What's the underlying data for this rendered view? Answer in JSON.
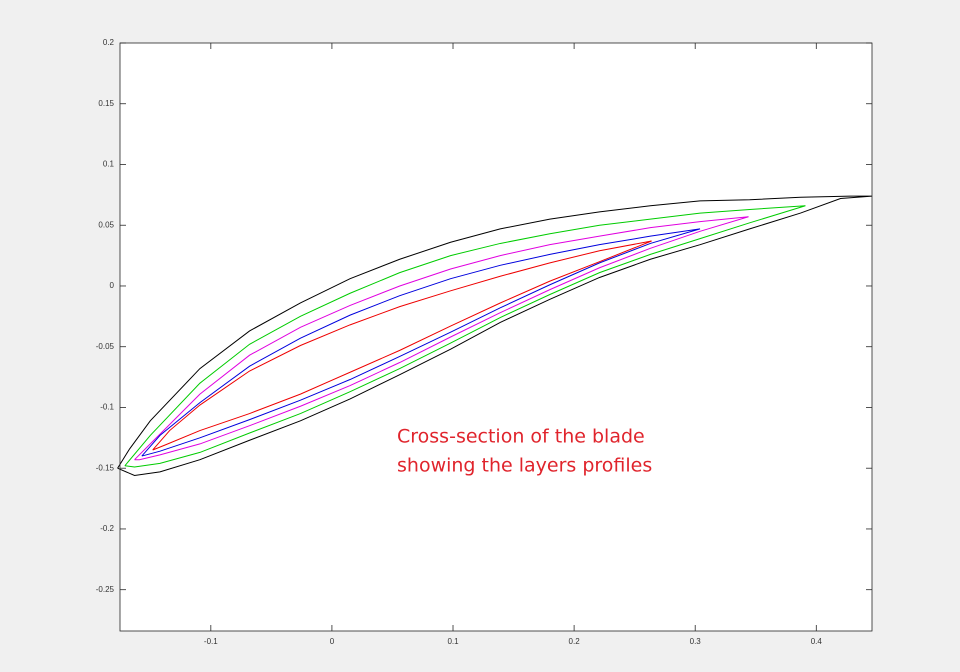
{
  "chart_data": {
    "type": "line",
    "annotation": [
      "Cross-section of the blade",
      "showing the layers profiles"
    ],
    "xlim": [
      -0.175,
      0.446
    ],
    "ylim": [
      -0.284,
      0.2
    ],
    "xticks": [
      -0.1,
      0,
      0.1,
      0.2,
      0.3,
      0.4
    ],
    "yticks": [
      -0.25,
      -0.2,
      -0.15,
      -0.1,
      -0.05,
      0,
      0.05,
      0.1,
      0.15,
      0.2
    ],
    "grid": false,
    "series": [
      {
        "color": "#000000",
        "x": [
          -0.177,
          -0.167,
          -0.15,
          -0.109,
          -0.068,
          -0.026,
          0.015,
          0.056,
          0.098,
          0.139,
          0.18,
          0.221,
          0.263,
          0.304,
          0.345,
          0.387,
          0.428,
          0.446,
          0.42,
          0.387,
          0.345,
          0.304,
          0.263,
          0.221,
          0.18,
          0.139,
          0.098,
          0.056,
          0.015,
          -0.026,
          -0.068,
          -0.109,
          -0.142,
          -0.163,
          -0.177
        ],
        "values": [
          -0.15,
          -0.134,
          -0.111,
          -0.068,
          -0.037,
          -0.014,
          0.006,
          0.022,
          0.036,
          0.047,
          0.055,
          0.061,
          0.066,
          0.07,
          0.071,
          0.073,
          0.074,
          0.074,
          0.072,
          0.06,
          0.047,
          0.034,
          0.022,
          0.007,
          -0.011,
          -0.03,
          -0.052,
          -0.073,
          -0.093,
          -0.111,
          -0.127,
          -0.143,
          -0.153,
          -0.156,
          -0.15
        ]
      },
      {
        "color": "#00cc00",
        "x": [
          -0.171,
          -0.15,
          -0.109,
          -0.068,
          -0.026,
          0.015,
          0.056,
          0.098,
          0.139,
          0.18,
          0.221,
          0.263,
          0.304,
          0.345,
          0.391,
          0.345,
          0.304,
          0.263,
          0.221,
          0.18,
          0.139,
          0.098,
          0.056,
          0.015,
          -0.026,
          -0.068,
          -0.109,
          -0.142,
          -0.163,
          -0.171
        ],
        "values": [
          -0.148,
          -0.123,
          -0.08,
          -0.048,
          -0.025,
          -0.006,
          0.011,
          0.025,
          0.035,
          0.043,
          0.05,
          0.055,
          0.06,
          0.063,
          0.066,
          0.052,
          0.039,
          0.026,
          0.011,
          -0.007,
          -0.026,
          -0.047,
          -0.068,
          -0.087,
          -0.105,
          -0.121,
          -0.137,
          -0.146,
          -0.149,
          -0.148
        ]
      },
      {
        "color": "#e000e0",
        "x": [
          -0.163,
          -0.15,
          -0.109,
          -0.068,
          -0.026,
          0.015,
          0.056,
          0.098,
          0.139,
          0.18,
          0.221,
          0.263,
          0.304,
          0.344,
          0.304,
          0.263,
          0.221,
          0.18,
          0.139,
          0.098,
          0.056,
          0.015,
          -0.026,
          -0.068,
          -0.109,
          -0.142,
          -0.159,
          -0.163
        ],
        "values": [
          -0.143,
          -0.13,
          -0.089,
          -0.057,
          -0.034,
          -0.016,
          0,
          0.014,
          0.025,
          0.034,
          0.041,
          0.048,
          0.053,
          0.057,
          0.045,
          0.031,
          0.015,
          -0.003,
          -0.022,
          -0.042,
          -0.063,
          -0.082,
          -0.099,
          -0.115,
          -0.13,
          -0.139,
          -0.143,
          -0.143
        ]
      },
      {
        "color": "#0000dd",
        "x": [
          -0.157,
          -0.142,
          -0.109,
          -0.068,
          -0.026,
          0.015,
          0.056,
          0.098,
          0.139,
          0.18,
          0.221,
          0.263,
          0.304,
          0.263,
          0.221,
          0.18,
          0.139,
          0.098,
          0.056,
          0.015,
          -0.026,
          -0.068,
          -0.109,
          -0.142,
          -0.157
        ],
        "values": [
          -0.14,
          -0.123,
          -0.096,
          -0.066,
          -0.043,
          -0.024,
          -0.008,
          0.006,
          0.017,
          0.026,
          0.034,
          0.041,
          0.047,
          0.035,
          0.019,
          0.001,
          -0.018,
          -0.038,
          -0.058,
          -0.077,
          -0.094,
          -0.11,
          -0.125,
          -0.136,
          -0.14
        ]
      },
      {
        "color": "#ee0000",
        "x": [
          -0.148,
          -0.134,
          -0.109,
          -0.068,
          -0.026,
          0.015,
          0.056,
          0.098,
          0.139,
          0.18,
          0.221,
          0.264,
          0.221,
          0.18,
          0.139,
          0.098,
          0.056,
          0.015,
          -0.026,
          -0.068,
          -0.109,
          -0.138,
          -0.148
        ],
        "values": [
          -0.135,
          -0.119,
          -0.098,
          -0.07,
          -0.049,
          -0.032,
          -0.017,
          -0.004,
          0.008,
          0.019,
          0.029,
          0.037,
          0.02,
          0.004,
          -0.014,
          -0.033,
          -0.053,
          -0.071,
          -0.089,
          -0.105,
          -0.119,
          -0.131,
          -0.135
        ]
      }
    ]
  }
}
